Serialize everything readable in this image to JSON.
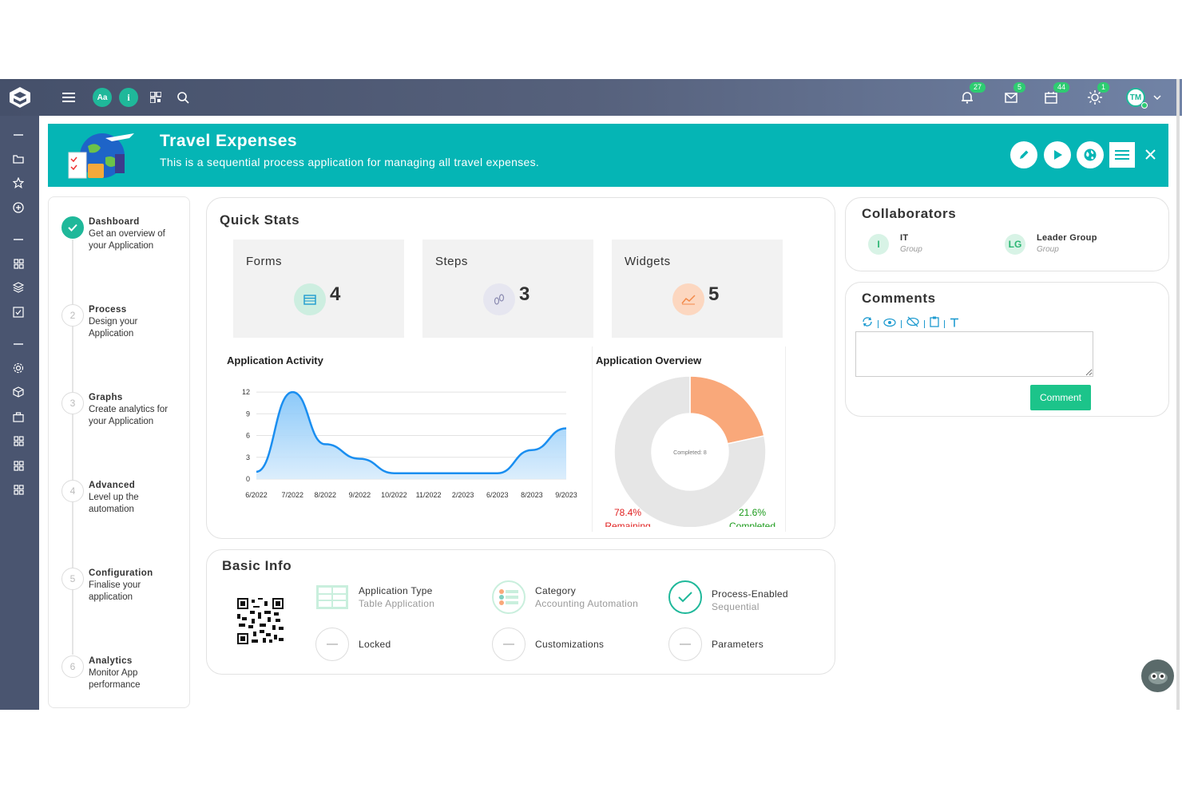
{
  "topbar": {
    "btn_aa": "Aa",
    "btn_info": "i",
    "notifications": {
      "bell": "27",
      "mail": "5",
      "calendar": "44",
      "sun": "1"
    },
    "user_initials": "TM"
  },
  "banner": {
    "title": "Travel Expenses",
    "subtitle": "This is a sequential process application for managing all travel expenses."
  },
  "steps": [
    {
      "num": "✓",
      "title": "Dashboard",
      "desc": "Get an overview of your Application"
    },
    {
      "num": "2",
      "title": "Process",
      "desc": "Design your Application"
    },
    {
      "num": "3",
      "title": "Graphs",
      "desc": "Create analytics for your Application"
    },
    {
      "num": "4",
      "title": "Advanced",
      "desc": "Level up the automation"
    },
    {
      "num": "5",
      "title": "Configuration",
      "desc": "Finalise your application"
    },
    {
      "num": "6",
      "title": "Analytics",
      "desc": "Monitor App performance"
    }
  ],
  "quick_stats": {
    "title": "Quick Stats",
    "items": [
      {
        "label": "Forms",
        "value": "4"
      },
      {
        "label": "Steps",
        "value": "3"
      },
      {
        "label": "Widgets",
        "value": "5"
      }
    ]
  },
  "chart_data": [
    {
      "type": "area",
      "title": "Application Activity",
      "categories": [
        "6/2022",
        "7/2022",
        "8/2022",
        "9/2022",
        "10/2022",
        "11/2022",
        "2/2023",
        "6/2023",
        "8/2023",
        "9/2023"
      ],
      "x": [
        0,
        1.05,
        2,
        3,
        4,
        5,
        6,
        7,
        8,
        9
      ],
      "values": [
        1,
        12,
        4.8,
        2.8,
        0.8,
        0.8,
        0.8,
        0.8,
        4,
        7
      ],
      "yticks": [
        0,
        3,
        6,
        9,
        12
      ],
      "ylim": [
        0,
        13
      ],
      "color": "#1a8ef0"
    },
    {
      "type": "pie",
      "title": "Application Overview",
      "center_label": "Completed: 8",
      "slices": [
        {
          "label": "Remaining",
          "value": 78.4,
          "percent_label": "78.4%",
          "color": "#e6e6e6",
          "text_color": "#e02020"
        },
        {
          "label": "Completed",
          "value": 21.6,
          "percent_label": "21.6%",
          "color": "#f9a87a",
          "text_color": "#1a9a1a"
        }
      ]
    }
  ],
  "basic_info": {
    "title": "Basic Info",
    "items": [
      {
        "label": "Application Type",
        "sub": "Table Application"
      },
      {
        "label": "Category",
        "sub": "Accounting Automation"
      },
      {
        "label": "Process-Enabled",
        "sub": "Sequential"
      },
      {
        "label": "Locked",
        "sub": ""
      },
      {
        "label": "Customizations",
        "sub": ""
      },
      {
        "label": "Parameters",
        "sub": ""
      }
    ]
  },
  "collaborators": {
    "title": "Collaborators",
    "items": [
      {
        "initials": "I",
        "name": "IT",
        "type": "Group"
      },
      {
        "initials": "LG",
        "name": "Leader Group",
        "type": "Group"
      }
    ]
  },
  "comments": {
    "title": "Comments",
    "button": "Comment",
    "value": ""
  },
  "colors": {
    "accent": "#05b5b5",
    "green": "#1fb89a",
    "sidebar": "#4a5570"
  }
}
